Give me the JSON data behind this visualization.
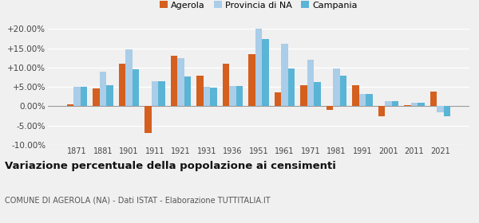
{
  "years": [
    1871,
    1881,
    1901,
    1911,
    1921,
    1931,
    1936,
    1951,
    1961,
    1971,
    1981,
    1991,
    2001,
    2011,
    2021
  ],
  "agerola": [
    0.5,
    4.7,
    11.0,
    -7.0,
    13.0,
    8.0,
    11.0,
    13.5,
    3.5,
    5.5,
    -1.0,
    5.5,
    -2.5,
    0.3,
    3.8
  ],
  "provincia_na": [
    5.0,
    9.0,
    14.8,
    6.5,
    12.5,
    5.0,
    5.3,
    20.0,
    16.2,
    12.0,
    9.8,
    3.1,
    1.3,
    1.0,
    -1.5
  ],
  "campania": [
    5.0,
    5.5,
    9.5,
    6.5,
    7.8,
    4.8,
    5.3,
    17.5,
    9.7,
    6.2,
    8.0,
    3.1,
    1.3,
    1.0,
    -2.5
  ],
  "color_agerola": "#d45f1e",
  "color_provincia": "#aacde8",
  "color_campania": "#5ab4d6",
  "title": "Variazione percentuale della popolazione ai censimenti",
  "subtitle": "COMUNE DI AGEROLA (NA) - Dati ISTAT - Elaborazione TUTTITALIA.IT",
  "ylim": [
    -10,
    20
  ],
  "yticks": [
    -10,
    -5,
    0,
    5,
    10,
    15,
    20
  ],
  "ytick_labels": [
    "-10.00%",
    "-5.00%",
    "0.00%",
    "+5.00%",
    "+10.00%",
    "+15.00%",
    "+20.00%"
  ],
  "bg_color": "#f0f0f0",
  "plot_bg": "#f0f0f0",
  "grid_color": "#ffffff",
  "bar_width": 0.26,
  "legend_fontsize": 8.0,
  "xtick_fontsize": 7.0,
  "ytick_fontsize": 7.5
}
